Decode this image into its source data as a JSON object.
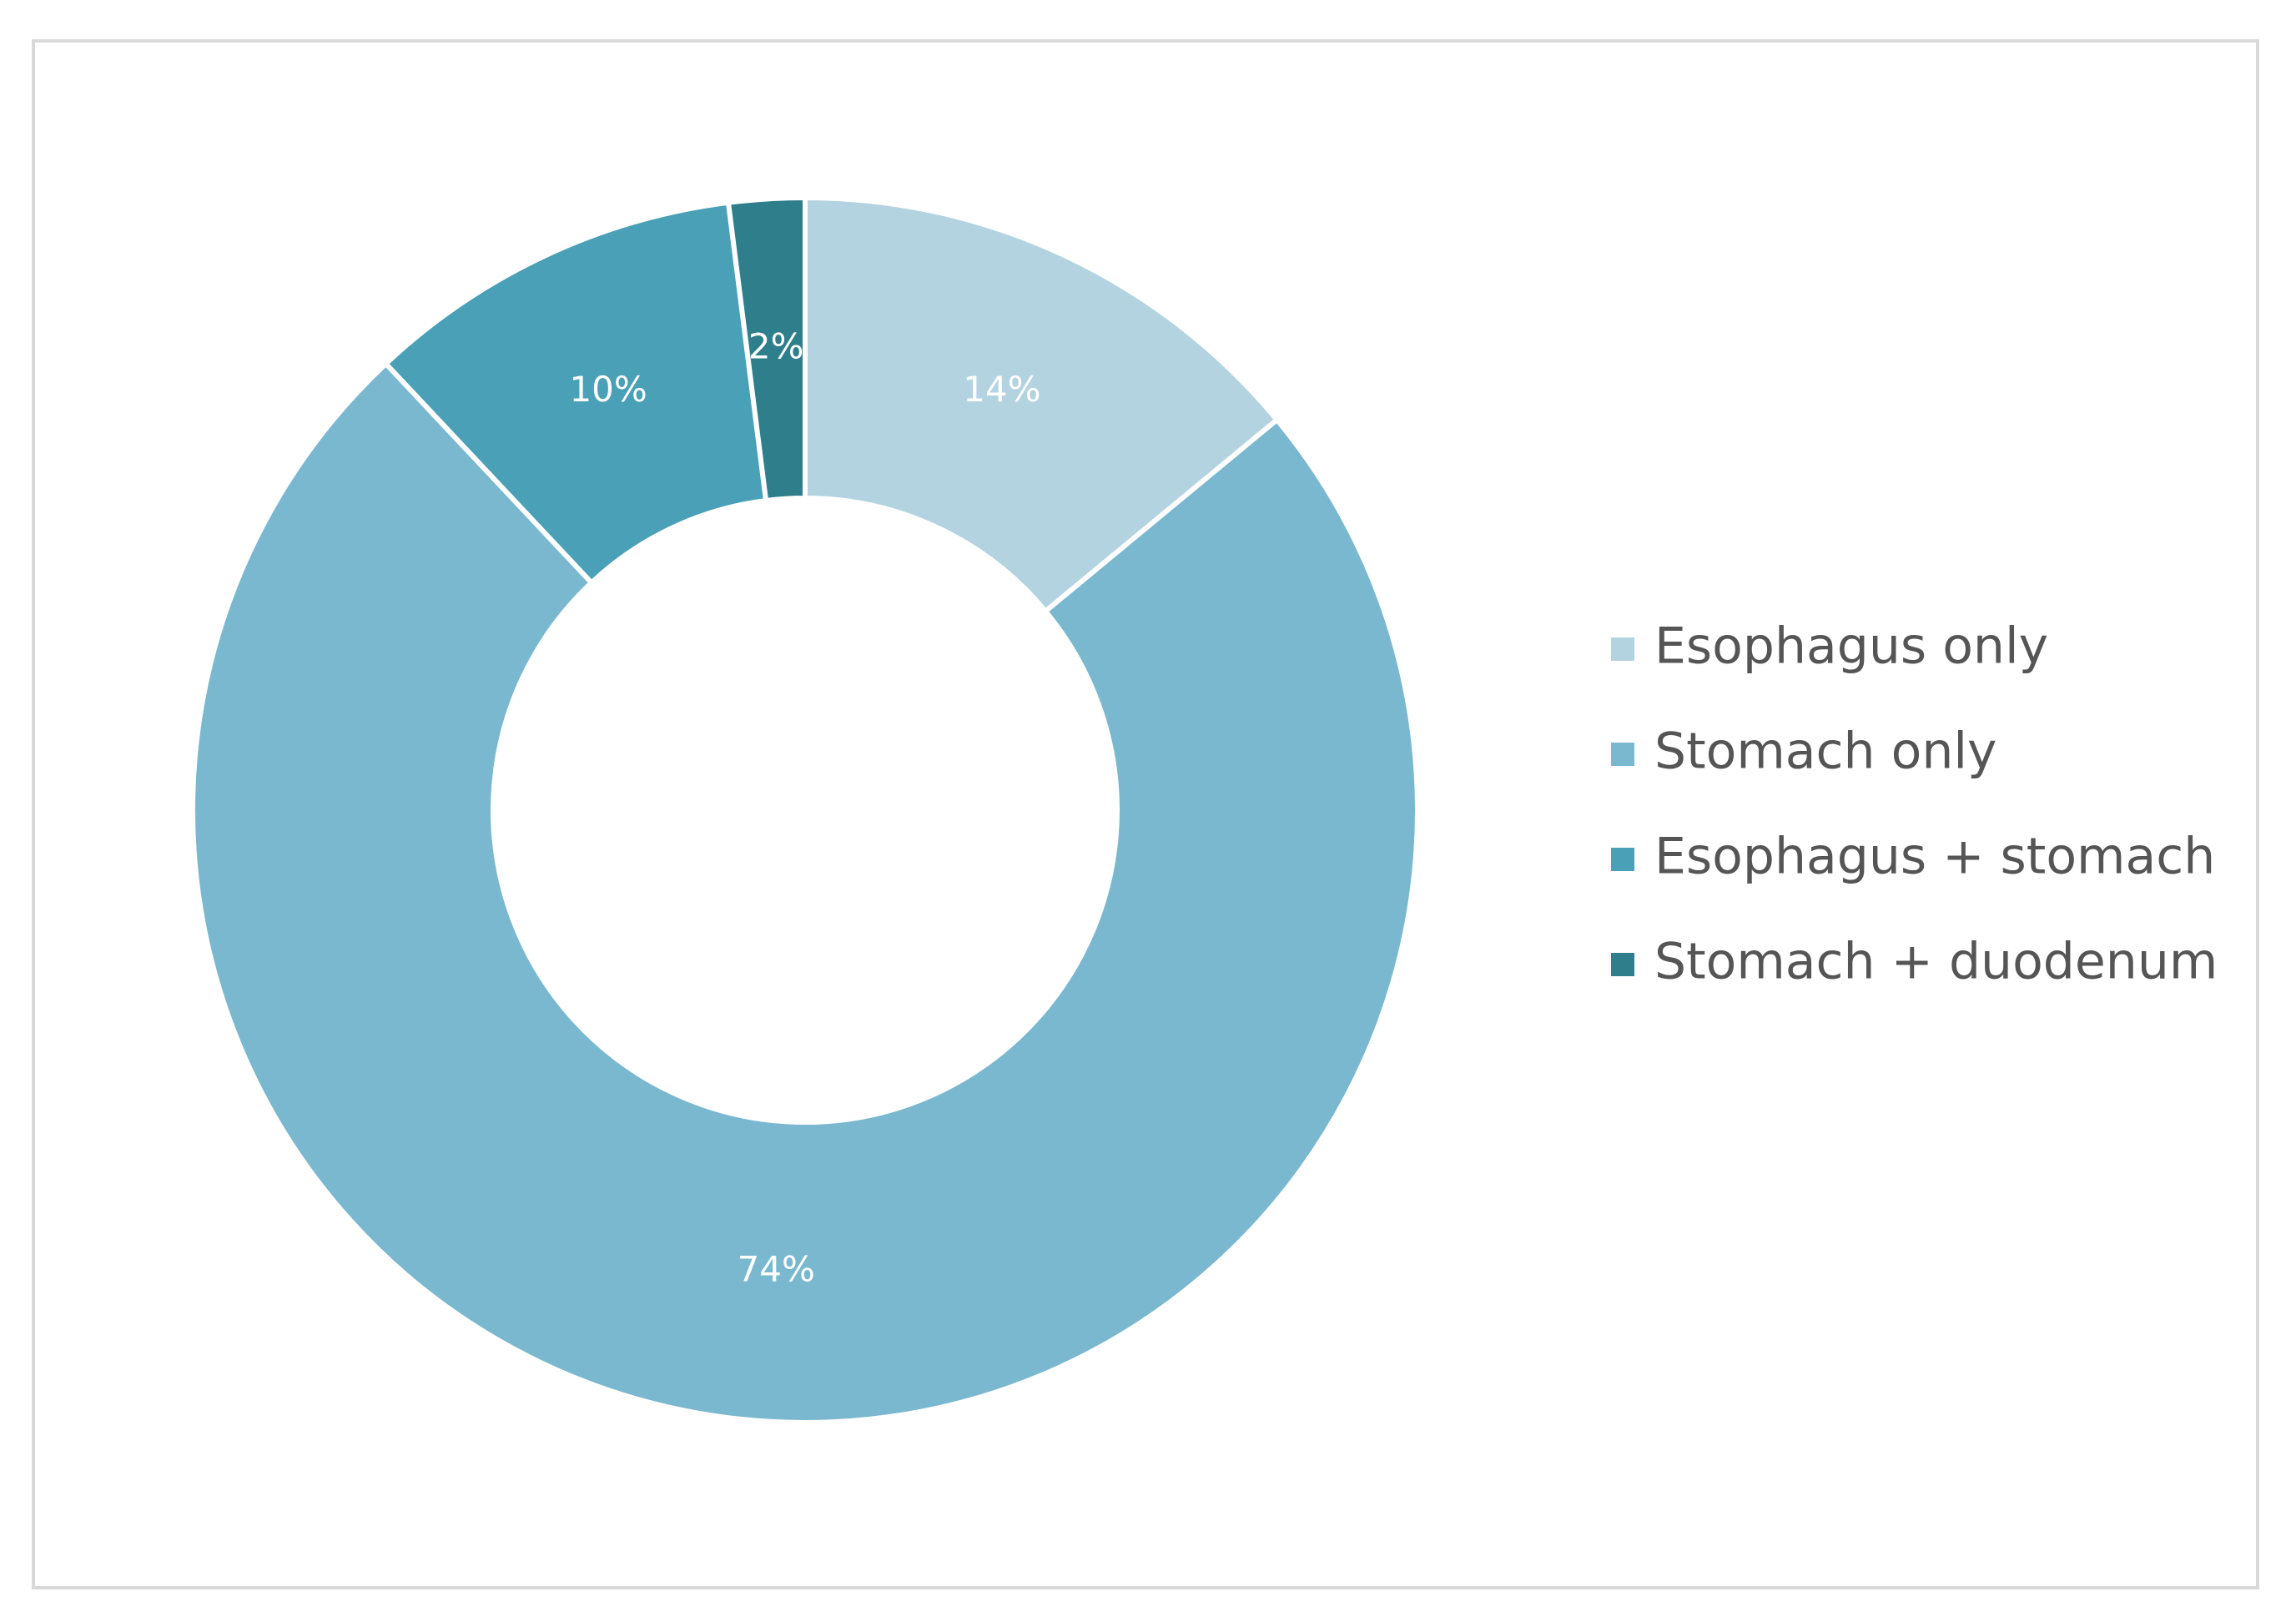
{
  "chart_data": {
    "type": "donut",
    "categories": [
      "Esophagus only",
      "Stomach only",
      "Esophagus + stomach",
      "Stomach + duodenum"
    ],
    "values": [
      14,
      74,
      10,
      2
    ],
    "value_labels": [
      "14%",
      "74%",
      "10%",
      "2%"
    ],
    "colors": [
      "#b4d3e0",
      "#7ab8cf",
      "#4aa0b6",
      "#2e7e8c"
    ],
    "legend": "right"
  }
}
